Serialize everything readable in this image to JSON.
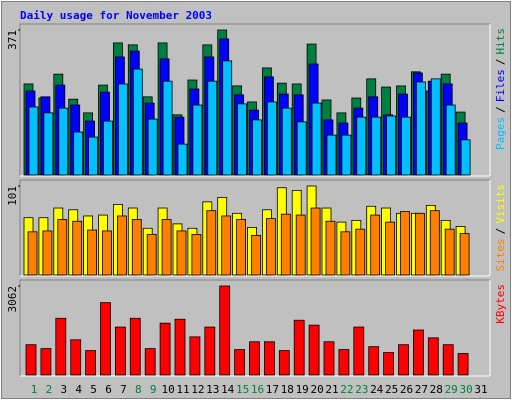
{
  "title": "Daily usage for November 2003",
  "legend_separator": "/",
  "chart_data": [
    {
      "type": "bar",
      "ylim": [
        0,
        371
      ],
      "yticks": [
        371
      ],
      "series": [
        {
          "name": "Hits",
          "color": "#008040",
          "values": [
            233,
            197,
            258,
            194,
            159,
            230,
            338,
            333,
            200,
            338,
            154,
            243,
            333,
            371,
            228,
            187,
            274,
            235,
            233,
            335,
            192,
            159,
            197,
            246,
            225,
            228,
            264,
            215,
            258,
            161,
            0
          ]
        },
        {
          "name": "Files",
          "color": "#0000FF",
          "values": [
            215,
            200,
            230,
            179,
            138,
            212,
            302,
            317,
            184,
            297,
            148,
            220,
            302,
            348,
            205,
            166,
            251,
            207,
            205,
            284,
            141,
            133,
            171,
            200,
            154,
            207,
            261,
            240,
            233,
            133,
            0
          ]
        },
        {
          "name": "Pages",
          "color": "#00C0FF",
          "values": [
            174,
            159,
            171,
            110,
            97,
            138,
            233,
            271,
            143,
            240,
            79,
            179,
            240,
            292,
            182,
            141,
            187,
            171,
            136,
            184,
            102,
            102,
            148,
            148,
            151,
            148,
            238,
            246,
            179,
            90,
            0
          ]
        }
      ]
    },
    {
      "type": "bar",
      "ylim": [
        0,
        101
      ],
      "yticks": [
        101
      ],
      "series": [
        {
          "name": "Visits",
          "color": "#FFFF00",
          "values": [
            65,
            65,
            76,
            74,
            67,
            68,
            80,
            76,
            53,
            76,
            58,
            53,
            83,
            88,
            70,
            54,
            74,
            99,
            96,
            101,
            76,
            60,
            62,
            78,
            76,
            70,
            70,
            79,
            62,
            55,
            0
          ]
        },
        {
          "name": "Sites",
          "color": "#FF8000",
          "values": [
            49,
            50,
            63,
            61,
            51,
            50,
            67,
            63,
            46,
            63,
            50,
            46,
            73,
            67,
            63,
            45,
            64,
            69,
            68,
            76,
            61,
            49,
            52,
            68,
            60,
            72,
            70,
            73,
            52,
            47,
            0
          ]
        }
      ]
    },
    {
      "type": "bar",
      "ylim": [
        0,
        3062
      ],
      "yticks": [
        3062
      ],
      "categories": [
        "1",
        "2",
        "3",
        "4",
        "5",
        "6",
        "7",
        "8",
        "9",
        "10",
        "11",
        "12",
        "13",
        "14",
        "15",
        "16",
        "17",
        "18",
        "19",
        "20",
        "21",
        "22",
        "23",
        "24",
        "25",
        "26",
        "27",
        "28",
        "29",
        "30",
        "31"
      ],
      "category_colors": [
        "#008040",
        "#008040",
        "#000000",
        "#000000",
        "#000000",
        "#000000",
        "#000000",
        "#008040",
        "#008040",
        "#000000",
        "#000000",
        "#000000",
        "#000000",
        "#000000",
        "#008040",
        "#008040",
        "#000000",
        "#000000",
        "#000000",
        "#000000",
        "#000000",
        "#008040",
        "#008040",
        "#000000",
        "#000000",
        "#000000",
        "#000000",
        "#000000",
        "#008040",
        "#008040",
        "#000000"
      ],
      "series": [
        {
          "name": "KBytes",
          "color": "#FF0000",
          "values": [
            1043,
            909,
            1952,
            1211,
            841,
            2490,
            1649,
            1952,
            909,
            1783,
            1918,
            1312,
            1649,
            3062,
            875,
            1144,
            1144,
            841,
            1884,
            1716,
            1144,
            875,
            1649,
            976,
            774,
            1043,
            1548,
            1279,
            1043,
            740,
            0
          ]
        }
      ]
    }
  ]
}
